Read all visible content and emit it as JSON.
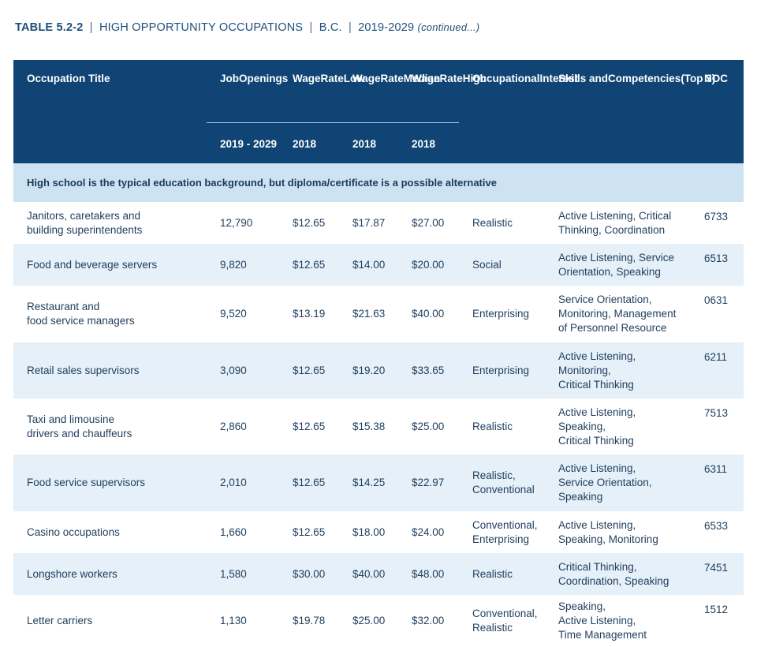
{
  "title": {
    "number": "TABLE 5.2-2",
    "name": "HIGH OPPORTUNITY OCCUPATIONS",
    "region": "B.C.",
    "years": "2019-2029",
    "continued": "(continued...)",
    "separator": "|"
  },
  "header": {
    "occupation": "Occupation Title",
    "job_openings": "Job\nOpenings",
    "wage_low": "Wage\nRate\nLow",
    "wage_median": "Wage\nRate\nMedian",
    "wage_high": "Wage\nRate\nHigh",
    "interest": "Occupational\nInterest",
    "skills": "Skills and\nCompetencies\n(Top 3)",
    "noc": "NOC",
    "job_years": "2019 - 2029",
    "low_year": "2018",
    "median_year": "2018",
    "high_year": "2018"
  },
  "band": "High school is the typical education background, but diploma/certificate is a possible alternative",
  "rows": [
    {
      "occupation": "Janitors, caretakers and\nbuilding superintendents",
      "openings": "12,790",
      "low": "$12.65",
      "median": "$17.87",
      "high": "$27.00",
      "interest": "Realistic",
      "skills": "Active Listening, Critical\nThinking, Coordination",
      "noc": "6733"
    },
    {
      "occupation": "Food and beverage servers",
      "openings": "9,820",
      "low": "$12.65",
      "median": "$14.00",
      "high": "$20.00",
      "interest": "Social",
      "skills": "Active Listening, Service\nOrientation, Speaking",
      "noc": "6513"
    },
    {
      "occupation": "Restaurant and\nfood service managers",
      "openings": "9,520",
      "low": "$13.19",
      "median": "$21.63",
      "high": "$40.00",
      "interest": "Enterprising",
      "skills": "Service Orientation,\nMonitoring, Management\nof Personnel Resource",
      "noc": "0631"
    },
    {
      "occupation": "Retail sales supervisors",
      "openings": "3,090",
      "low": "$12.65",
      "median": "$19.20",
      "high": "$33.65",
      "interest": "Enterprising",
      "skills": "Active Listening,\nMonitoring,\nCritical Thinking",
      "noc": "6211"
    },
    {
      "occupation": "Taxi and limousine\ndrivers and chauffeurs",
      "openings": "2,860",
      "low": "$12.65",
      "median": "$15.38",
      "high": "$25.00",
      "interest": "Realistic",
      "skills": "Active Listening,\nSpeaking,\nCritical Thinking",
      "noc": "7513"
    },
    {
      "occupation": "Food service supervisors",
      "openings": "2,010",
      "low": "$12.65",
      "median": "$14.25",
      "high": "$22.97",
      "interest": "Realistic,\nConventional",
      "skills": "Active Listening,\nService Orientation,\nSpeaking",
      "noc": "6311"
    },
    {
      "occupation": "Casino occupations",
      "openings": "1,660",
      "low": "$12.65",
      "median": "$18.00",
      "high": "$24.00",
      "interest": "Conventional,\nEnterprising",
      "skills": "Active Listening,\nSpeaking, Monitoring",
      "noc": "6533"
    },
    {
      "occupation": "Longshore workers",
      "openings": "1,580",
      "low": "$30.00",
      "median": "$40.00",
      "high": "$48.00",
      "interest": "Realistic",
      "skills": "Critical Thinking,\nCoordination, Speaking",
      "noc": "7451"
    },
    {
      "occupation": "Letter carriers",
      "openings": "1,130",
      "low": "$19.78",
      "median": "$25.00",
      "high": "$32.00",
      "interest": "Conventional,\nRealistic",
      "skills": "Speaking,\nActive Listening,\nTime Management",
      "noc": "1512"
    }
  ]
}
